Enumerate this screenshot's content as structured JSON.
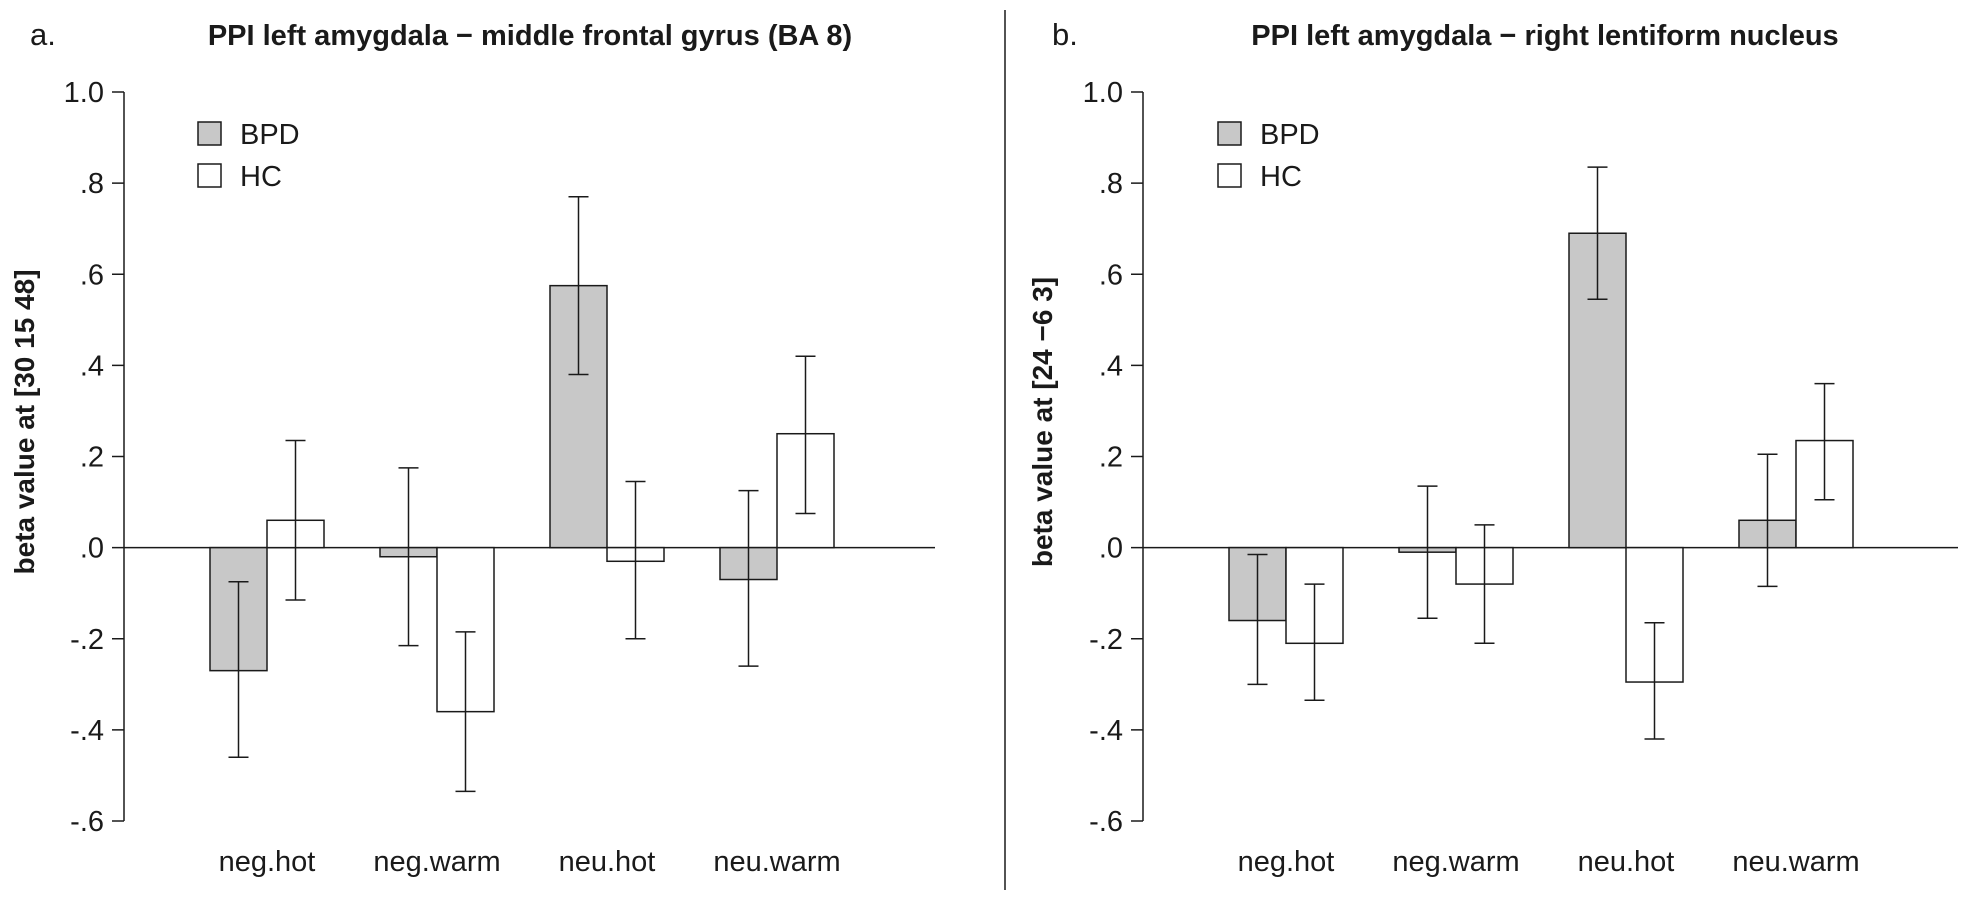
{
  "colors": {
    "bpd": "#c8c8c8",
    "hc": "#ffffff",
    "stroke": "#1a1a1a"
  },
  "chart_data": [
    {
      "type": "bar",
      "panel_label": "a.",
      "title": "PPI left amygdala − middle frontal gyrus (BA 8)",
      "ylabel": "beta value at [30 15 48]",
      "xlabel": "",
      "categories": [
        "neg.hot",
        "neg.warm",
        "neu.hot",
        "neu.warm"
      ],
      "ylim": [
        -0.6,
        1.0
      ],
      "yticks": [
        1.0,
        0.8,
        0.6,
        0.4,
        0.2,
        0.0,
        -0.2,
        -0.4,
        -0.6
      ],
      "ytick_labels": [
        "1.0",
        ".8",
        ".6",
        ".4",
        ".2",
        ".0",
        "-.2",
        "-.4",
        "-.6"
      ],
      "legend": {
        "position": "top-left",
        "entries": [
          "BPD",
          "HC"
        ]
      },
      "series": [
        {
          "name": "BPD",
          "values": [
            -0.27,
            -0.02,
            0.575,
            -0.07
          ],
          "err_low": [
            -0.46,
            -0.215,
            0.38,
            -0.26
          ],
          "err_high": [
            -0.075,
            0.175,
            0.77,
            0.125
          ]
        },
        {
          "name": "HC",
          "values": [
            0.06,
            -0.36,
            -0.03,
            0.25
          ],
          "err_low": [
            -0.115,
            -0.535,
            -0.2,
            0.075
          ],
          "err_high": [
            0.235,
            -0.185,
            0.145,
            0.42
          ]
        }
      ]
    },
    {
      "type": "bar",
      "panel_label": "b.",
      "title": "PPI left amygdala − right lentiform nucleus",
      "ylabel": "beta value at [24 −6 3]",
      "xlabel": "",
      "categories": [
        "neg.hot",
        "neg.warm",
        "neu.hot",
        "neu.warm"
      ],
      "ylim": [
        -0.6,
        1.0
      ],
      "yticks": [
        1.0,
        0.8,
        0.6,
        0.4,
        0.2,
        0.0,
        -0.2,
        -0.4,
        -0.6
      ],
      "ytick_labels": [
        "1.0",
        ".8",
        ".6",
        ".4",
        ".2",
        ".0",
        "-.2",
        "-.4",
        "-.6"
      ],
      "legend": {
        "position": "top-left",
        "entries": [
          "BPD",
          "HC"
        ]
      },
      "series": [
        {
          "name": "BPD",
          "values": [
            -0.16,
            -0.01,
            0.69,
            0.06
          ],
          "err_low": [
            -0.3,
            -0.155,
            0.545,
            -0.085
          ],
          "err_high": [
            -0.015,
            0.135,
            0.835,
            0.205
          ]
        },
        {
          "name": "HC",
          "values": [
            -0.21,
            -0.08,
            -0.295,
            0.235
          ],
          "err_low": [
            -0.335,
            -0.21,
            -0.42,
            0.105
          ],
          "err_high": [
            -0.08,
            0.05,
            -0.165,
            0.36
          ]
        }
      ]
    }
  ]
}
